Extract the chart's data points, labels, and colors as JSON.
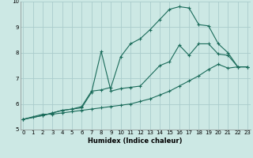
{
  "xlabel": "Humidex (Indice chaleur)",
  "xlim": [
    0,
    23
  ],
  "ylim": [
    5,
    10
  ],
  "xticks": [
    0,
    1,
    2,
    3,
    4,
    5,
    6,
    7,
    8,
    9,
    10,
    11,
    12,
    13,
    14,
    15,
    16,
    17,
    18,
    19,
    20,
    21,
    22,
    23
  ],
  "yticks": [
    5,
    6,
    7,
    8,
    9,
    10
  ],
  "bg_color": "#cce8e4",
  "grid_color": "#aacccc",
  "line_color": "#1a6b5a",
  "line1_x": [
    0,
    1,
    2,
    3,
    4,
    5,
    6,
    7,
    8,
    9,
    10,
    11,
    12,
    13,
    14,
    15,
    16,
    17,
    18,
    19,
    20,
    21,
    22,
    23
  ],
  "line1_y": [
    5.4,
    5.5,
    5.6,
    5.6,
    5.65,
    5.7,
    5.75,
    5.8,
    5.85,
    5.9,
    5.95,
    6.0,
    6.1,
    6.2,
    6.35,
    6.5,
    6.7,
    6.9,
    7.1,
    7.35,
    7.55,
    7.4,
    7.45,
    7.45
  ],
  "line2_x": [
    0,
    2,
    3,
    4,
    5,
    6,
    7,
    8,
    9,
    10,
    11,
    12,
    14,
    15,
    16,
    17,
    18,
    19,
    20,
    21,
    22,
    23
  ],
  "line2_y": [
    5.4,
    5.55,
    5.65,
    5.75,
    5.8,
    5.85,
    6.45,
    8.05,
    6.5,
    6.6,
    6.65,
    6.7,
    7.5,
    7.65,
    8.3,
    7.9,
    8.35,
    8.35,
    7.95,
    7.9,
    7.45,
    7.45
  ],
  "line3_x": [
    0,
    2,
    3,
    4,
    5,
    6,
    7,
    8,
    9,
    10,
    11,
    12,
    13,
    14,
    15,
    16,
    17,
    18,
    19,
    20,
    21,
    22,
    23
  ],
  "line3_y": [
    5.4,
    5.55,
    5.65,
    5.75,
    5.8,
    5.9,
    6.5,
    6.55,
    6.65,
    7.85,
    8.35,
    8.55,
    8.9,
    9.3,
    9.7,
    9.8,
    9.75,
    9.1,
    9.05,
    8.35,
    8.0,
    7.45,
    7.45
  ]
}
